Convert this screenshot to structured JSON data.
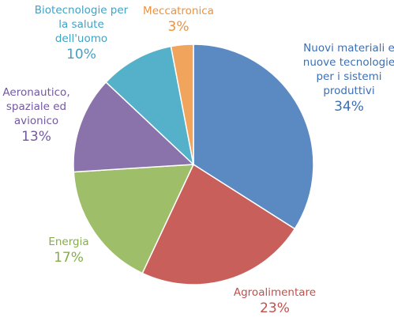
{
  "chart_data": {
    "type": "pie",
    "categories": [
      "Nuovi materiali e nuove tecnologie per i sistemi produttivi",
      "Agroalimentare",
      "Energia",
      "Aeronautico, spaziale ed avionico",
      "Biotecnologie per la salute dell'uomo",
      "Meccatronica"
    ],
    "values": [
      34,
      23,
      17,
      13,
      10,
      3
    ],
    "value_labels": [
      "34%",
      "23%",
      "17%",
      "13%",
      "10%",
      "3%"
    ],
    "colors": [
      "#5b8ac2",
      "#c85f5b",
      "#9fbe6a",
      "#8a72aa",
      "#55b1c9",
      "#f1a45b"
    ],
    "label_colors": [
      "#3d6fb3",
      "#c0504d",
      "#86ad4c",
      "#7359a0",
      "#41a2c4",
      "#f0913a"
    ]
  }
}
